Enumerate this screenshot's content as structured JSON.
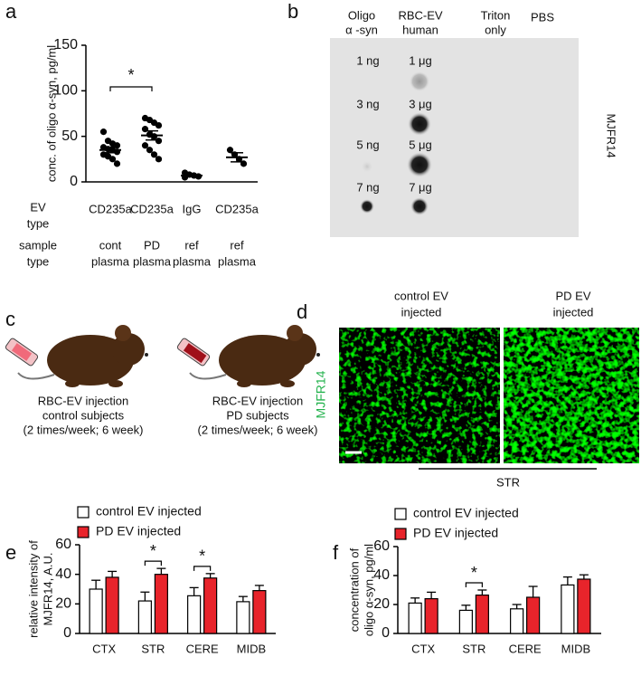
{
  "panels": [
    "a",
    "b",
    "c",
    "d",
    "e",
    "f"
  ],
  "chart_data": [
    {
      "type": "dot",
      "y_label": "conc. of oligo α-syn, pg/ml",
      "categories": [
        "CD235a",
        "CD235a",
        "IgG",
        "CD235a"
      ],
      "row_labels": [
        [
          "EV",
          "type"
        ],
        [
          "sample",
          "type"
        ]
      ],
      "sample_type": [
        [
          "cont",
          "plasma"
        ],
        [
          "PD",
          "plasma"
        ],
        [
          "ref",
          "plasma"
        ],
        [
          "ref",
          "plasma"
        ]
      ],
      "values": [
        [
          55,
          45,
          42,
          40,
          38,
          36,
          35,
          33,
          30,
          28,
          25,
          20
        ],
        [
          70,
          68,
          65,
          62,
          58,
          52,
          50,
          45,
          40,
          35,
          30,
          25
        ],
        [
          10,
          8,
          7,
          6,
          5
        ],
        [
          35,
          30,
          25,
          20
        ]
      ],
      "means": [
        35,
        51,
        7,
        27
      ],
      "errors": [
        3,
        5,
        1,
        5
      ],
      "color": "#000000",
      "ylim": [
        0,
        150
      ],
      "yticks": [
        0,
        50,
        100,
        150
      ],
      "grid": false,
      "annotations": [
        {
          "text": "*",
          "categories": [
            0,
            1
          ]
        }
      ]
    },
    {
      "type": "bar",
      "y_label": [
        "relative intensity of",
        "MJFR14, A.U."
      ],
      "categories": [
        "CTX",
        "STR",
        "CERE",
        "MIDB"
      ],
      "series": [
        {
          "name": "control EV injected",
          "color": "#ffffff",
          "values": [
            30,
            22,
            25.5,
            21.5
          ],
          "errors": [
            6,
            6,
            5.5,
            3.5
          ]
        },
        {
          "name": "PD EV injected",
          "color": "#e8242b",
          "values": [
            38,
            40,
            37.5,
            29
          ],
          "errors": [
            4,
            4,
            3,
            3.5
          ]
        }
      ],
      "ylim": [
        0,
        60
      ],
      "yticks": [
        0,
        20,
        40,
        60
      ],
      "grid": false,
      "legend": "upper left",
      "annotations": [
        {
          "text": "*",
          "category": 1
        },
        {
          "text": "*",
          "category": 2
        }
      ]
    },
    {
      "type": "bar",
      "y_label": [
        "concentration of",
        "oligo α-syn, pg/ml"
      ],
      "categories": [
        "CTX",
        "STR",
        "CERE",
        "MIDB"
      ],
      "series": [
        {
          "name": "control EV injected",
          "color": "#ffffff",
          "values": [
            21,
            16,
            17,
            33.5
          ],
          "errors": [
            3.5,
            3.5,
            3,
            5.5
          ]
        },
        {
          "name": "PD EV injected",
          "color": "#e8242b",
          "values": [
            24,
            26.5,
            25,
            37.5
          ],
          "errors": [
            4.5,
            3.5,
            7.5,
            3
          ]
        }
      ],
      "ylim": [
        0,
        60
      ],
      "yticks": [
        0,
        20,
        40,
        60
      ],
      "grid": false,
      "legend": "upper left",
      "annotations": [
        {
          "text": "*",
          "category": 1
        }
      ]
    }
  ],
  "blot": {
    "columns": [
      [
        "Oligo",
        "α -syn"
      ],
      [
        "RBC-EV",
        "human"
      ],
      [
        "Triton",
        "only"
      ],
      [
        "PBS"
      ]
    ],
    "ng_labels": [
      "1 ng",
      "3 ng",
      "5 ng",
      "7 ng"
    ],
    "ug_labels": [
      "1 μg",
      "3 μg",
      "5 μg",
      "7 μg"
    ],
    "antibody": "MJFR14"
  },
  "injection": {
    "groups": [
      [
        "RBC-EV injection",
        "control subjects",
        "(2 times/week; 6 week)"
      ],
      [
        "RBC-EV injection",
        "PD subjects",
        "(2 times/week; 6 week)"
      ]
    ]
  },
  "microscopy": {
    "columns": [
      [
        "control EV",
        "injected"
      ],
      [
        "PD EV",
        "injected"
      ]
    ],
    "antibody": "MJFR14",
    "region": "STR"
  }
}
